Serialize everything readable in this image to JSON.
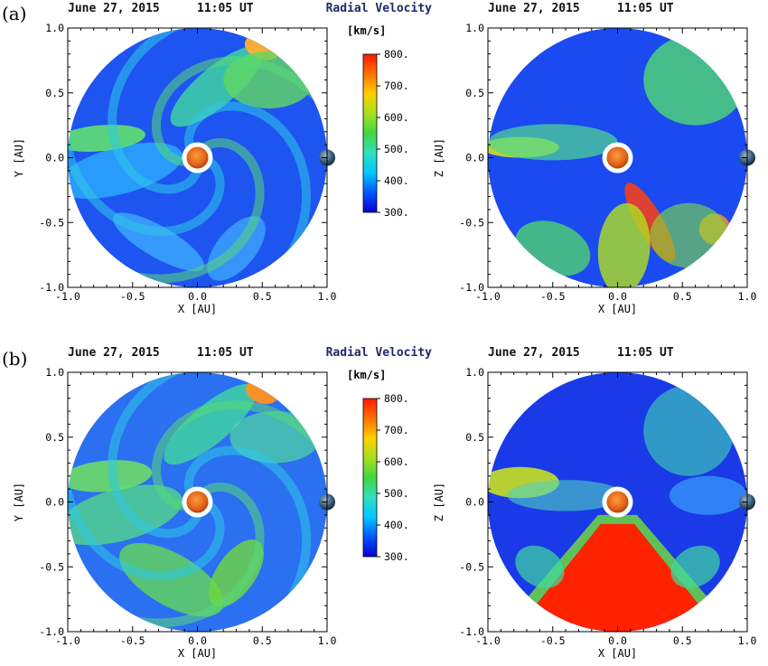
{
  "figure": {
    "rows": [
      {
        "label": "(a)",
        "panels": [
          {
            "date": "June 27, 2015",
            "time": "11:05 UT",
            "xlabel": "X [AU]",
            "ylabel": "Y [AU]",
            "view": "ecliptic",
            "title": "Radial Velocity"
          },
          {
            "date": "June 27, 2015",
            "time": "11:05 UT",
            "xlabel": "X [AU]",
            "ylabel": "Z [AU]",
            "view": "meridional",
            "title": ""
          }
        ]
      },
      {
        "label": "(b)",
        "panels": [
          {
            "date": "June 27, 2015",
            "time": "11:05 UT",
            "xlabel": "X [AU]",
            "ylabel": "Y [AU]",
            "view": "ecliptic",
            "title": "Radial Velocity"
          },
          {
            "date": "June 27, 2015",
            "time": "11:05 UT",
            "xlabel": "X [AU]",
            "ylabel": "Z [AU]",
            "view": "meridional",
            "title": ""
          }
        ]
      }
    ]
  },
  "chart_data": {
    "type": "heatmap",
    "quantity": "Radial Velocity",
    "xlim": [
      -1.0,
      1.0
    ],
    "ylim": [
      -1.0,
      1.0
    ],
    "x_ticks": [
      "-1.0",
      "-0.5",
      "0.0",
      "0.5",
      "1.0"
    ],
    "y_ticks": [
      "1.0",
      "0.5",
      "0.0",
      "-0.5",
      "-1.0"
    ],
    "colorbar": {
      "unit": "[km/s]",
      "min": 300,
      "max": 800,
      "ticks": [
        "800.",
        "700.",
        "600.",
        "500.",
        "400.",
        "300."
      ],
      "colors": [
        "#0a00d0",
        "#0055ff",
        "#00c8ff",
        "#30e0c0",
        "#40d840",
        "#a8e020",
        "#ffd000",
        "#ff7000",
        "#ff1a00"
      ]
    },
    "panels": [
      {
        "id": "a-left",
        "view": "ecliptic",
        "row": "(a)",
        "features": "spiral streams of 400-600 km/s, fast stream ~750 km/s near (0.5, 0.85)"
      },
      {
        "id": "a-right",
        "view": "meridional",
        "row": "(a)",
        "features": "fast streams up to ~750 km/s below the equator near X 0.1-0.4"
      },
      {
        "id": "b-left",
        "view": "ecliptic",
        "row": "(b)",
        "features": "spiral streams of 450-650 km/s, fast stream ~750 km/s near (0.5, 0.85)"
      },
      {
        "id": "b-right",
        "view": "meridional",
        "row": "(b)",
        "features": "fast solar wind ~800 km/s filling southern cone below Z = -0.2"
      }
    ]
  },
  "colors": {
    "background": "#ffffff",
    "sun_ring": "#ffffff",
    "sun": "#e0641a",
    "earth": "#3a5a7a"
  }
}
